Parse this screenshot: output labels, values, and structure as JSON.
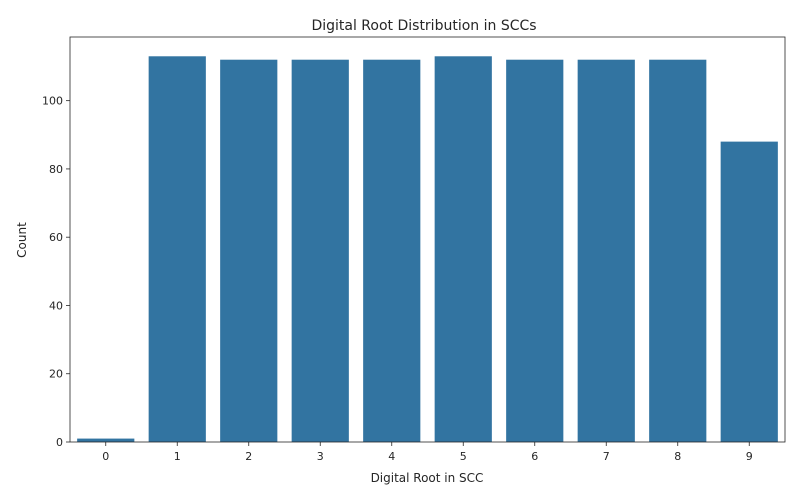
{
  "chart_data": {
    "type": "bar",
    "title": "Digital Root Distribution in SCCs",
    "xlabel": "Digital Root in SCC",
    "ylabel": "Count",
    "categories": [
      "0",
      "1",
      "2",
      "3",
      "4",
      "5",
      "6",
      "7",
      "8",
      "9"
    ],
    "values": [
      1,
      113,
      112,
      112,
      112,
      113,
      112,
      112,
      112,
      88
    ],
    "ylim": [
      0,
      118.65
    ],
    "yticks": [
      "0",
      "20",
      "40",
      "60",
      "80",
      "100"
    ],
    "grid": false,
    "legend": "none",
    "bar_color": "#3274a1",
    "axis_color": "#262626"
  }
}
